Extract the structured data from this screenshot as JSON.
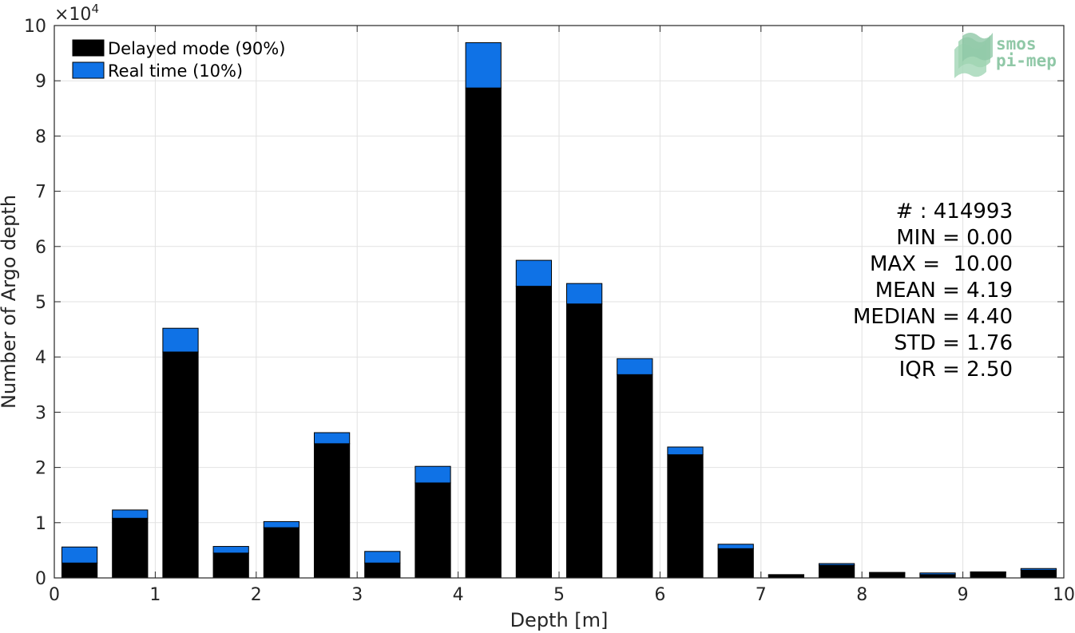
{
  "chart_data": {
    "type": "bar",
    "stacked": true,
    "xlabel": "Depth [m]",
    "ylabel": "Number of Argo depth",
    "y_multiplier_label": "×10",
    "y_multiplier_exponent": "4",
    "xlim": [
      0,
      10
    ],
    "ylim": [
      0,
      10
    ],
    "x_ticks": [
      "0",
      "1",
      "2",
      "3",
      "4",
      "5",
      "6",
      "7",
      "8",
      "9",
      "10"
    ],
    "y_ticks": [
      "0",
      "1",
      "2",
      "3",
      "4",
      "5",
      "6",
      "7",
      "8",
      "9",
      "10"
    ],
    "grid": true,
    "legend_position": "top-left",
    "x": [
      0.25,
      0.75,
      1.25,
      1.75,
      2.25,
      2.75,
      3.25,
      3.75,
      4.25,
      4.75,
      5.25,
      5.75,
      6.25,
      6.75,
      7.25,
      7.75,
      8.25,
      8.75,
      9.25,
      9.75
    ],
    "series": [
      {
        "name": "Delayed mode (90%)",
        "color": "#000000",
        "values": [
          0.27,
          1.08,
          4.09,
          0.45,
          0.91,
          2.43,
          0.27,
          1.72,
          8.87,
          5.28,
          4.96,
          3.68,
          2.23,
          0.53,
          0.05,
          0.23,
          0.09,
          0.06,
          0.1,
          0.14
        ]
      },
      {
        "name": "Real time (10%)",
        "color": "#0f72e6",
        "values": [
          0.29,
          0.15,
          0.43,
          0.12,
          0.11,
          0.2,
          0.21,
          0.3,
          0.82,
          0.47,
          0.37,
          0.29,
          0.14,
          0.08,
          0.01,
          0.03,
          0.01,
          0.03,
          0.01,
          0.03
        ]
      }
    ],
    "annotations": [
      "# : 414993",
      "MIN = 0.00",
      "MAX =  10.00",
      "MEAN = 4.19",
      "MEDIAN = 4.40",
      "STD = 1.76",
      "IQR = 2.50"
    ]
  },
  "logo": {
    "line1": "smos",
    "line2": "pi-mep"
  }
}
